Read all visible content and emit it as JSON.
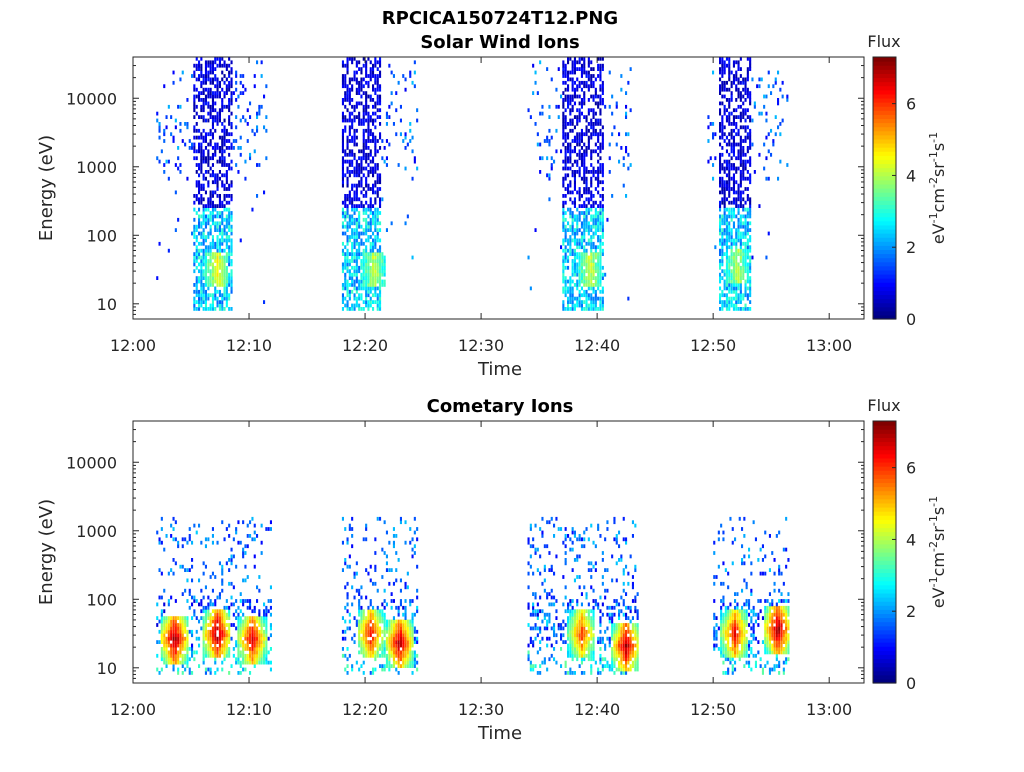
{
  "figure_title": "RPCICA150724T12.PNG",
  "chart_data": [
    {
      "type": "heatmap",
      "title": "Solar Wind Ions",
      "xlabel": "Time",
      "ylabel": "Energy (eV)",
      "x_ticks": [
        "12:00",
        "12:10",
        "12:20",
        "12:30",
        "12:40",
        "12:50",
        "13:00"
      ],
      "x_range_minutes": [
        0,
        63
      ],
      "y_scale": "log",
      "y_ticks": [
        "10",
        "100",
        "1000",
        "10000"
      ],
      "y_range": [
        6,
        40000
      ],
      "colorbar": {
        "title": "Flux",
        "label": "eV-1cm-2sr-1s-1",
        "ticks": [
          "0",
          "2",
          "4",
          "6"
        ],
        "range": [
          0,
          7.3
        ],
        "colormap": "jet"
      },
      "bursts": [
        {
          "start_min": 2.0,
          "end_min": 11.5,
          "core_start_min": 5.2,
          "core_end_min": 8.5,
          "peak_min": 7.2,
          "peak_energy_ev": 30,
          "peak_flux": 4.8
        },
        {
          "start_min": 18.0,
          "end_min": 24.5,
          "core_start_min": 18.0,
          "core_end_min": 21.2,
          "peak_min": 20.7,
          "peak_energy_ev": 30,
          "peak_flux": 4.5
        },
        {
          "start_min": 34.0,
          "end_min": 43.0,
          "core_start_min": 37.0,
          "core_end_min": 40.5,
          "peak_min": 39.3,
          "peak_energy_ev": 30,
          "peak_flux": 4.6
        },
        {
          "start_min": 49.5,
          "end_min": 56.5,
          "core_start_min": 50.5,
          "core_end_min": 53.2,
          "peak_min": 52.0,
          "peak_energy_ev": 35,
          "peak_flux": 4.4
        }
      ]
    },
    {
      "type": "heatmap",
      "title": "Cometary Ions",
      "xlabel": "Time",
      "ylabel": "Energy (eV)",
      "x_ticks": [
        "12:00",
        "12:10",
        "12:20",
        "12:30",
        "12:40",
        "12:50",
        "13:00"
      ],
      "x_range_minutes": [
        0,
        63
      ],
      "y_scale": "log",
      "y_ticks": [
        "10",
        "100",
        "1000",
        "10000"
      ],
      "y_range": [
        6,
        40000
      ],
      "colorbar": {
        "title": "Flux",
        "label": "eV-1cm-2sr-1s-1",
        "ticks": [
          "0",
          "2",
          "4",
          "6"
        ],
        "range": [
          0,
          7.3
        ],
        "colormap": "jet"
      },
      "bursts": [
        {
          "start_min": 2.0,
          "end_min": 11.8,
          "peaks": [
            {
              "min": 3.5,
              "energy_ev": 25,
              "flux": 7.0
            },
            {
              "min": 7.2,
              "energy_ev": 30,
              "flux": 7.0
            },
            {
              "min": 10.2,
              "energy_ev": 25,
              "flux": 6.5
            }
          ]
        },
        {
          "start_min": 18.0,
          "end_min": 24.5,
          "peaks": [
            {
              "min": 20.4,
              "energy_ev": 30,
              "flux": 6.2
            },
            {
              "min": 22.9,
              "energy_ev": 22,
              "flux": 6.8
            }
          ]
        },
        {
          "start_min": 34.0,
          "end_min": 43.5,
          "peaks": [
            {
              "min": 38.6,
              "energy_ev": 30,
              "flux": 5.8
            },
            {
              "min": 42.4,
              "energy_ev": 20,
              "flux": 6.8
            }
          ]
        },
        {
          "start_min": 50.0,
          "end_min": 56.5,
          "peaks": [
            {
              "min": 51.8,
              "energy_ev": 30,
              "flux": 6.2
            },
            {
              "min": 55.5,
              "energy_ev": 35,
              "flux": 7.0
            }
          ]
        }
      ]
    }
  ]
}
